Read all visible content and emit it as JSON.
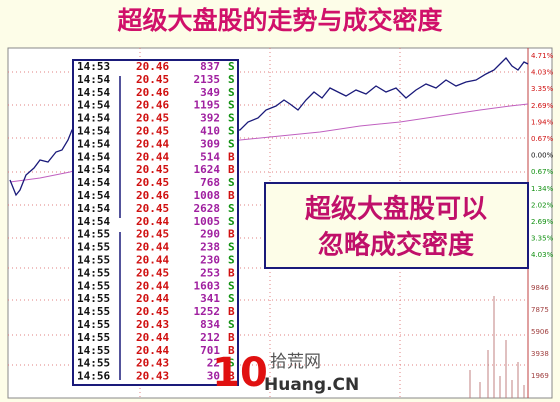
{
  "header": {
    "title": "超级大盘股的走势与成交密度"
  },
  "table": {
    "rows": [
      [
        "14:53",
        "20.46",
        "837",
        "S"
      ],
      [
        "14:54",
        "20.45",
        "2135",
        "S"
      ],
      [
        "14:54",
        "20.46",
        "349",
        "S"
      ],
      [
        "14:54",
        "20.46",
        "1195",
        "S"
      ],
      [
        "14:54",
        "20.45",
        "392",
        "S"
      ],
      [
        "14:54",
        "20.45",
        "410",
        "S"
      ],
      [
        "14:54",
        "20.44",
        "309",
        "S"
      ],
      [
        "14:54",
        "20.44",
        "514",
        "B"
      ],
      [
        "14:54",
        "20.45",
        "1624",
        "B"
      ],
      [
        "14:54",
        "20.45",
        "768",
        "S"
      ],
      [
        "14:54",
        "20.46",
        "1008",
        "B"
      ],
      [
        "14:54",
        "20.45",
        "2628",
        "S"
      ],
      [
        "14:54",
        "20.44",
        "1005",
        "S"
      ],
      [
        "14:55",
        "20.45",
        "290",
        "B"
      ],
      [
        "14:55",
        "20.44",
        "238",
        "S"
      ],
      [
        "14:55",
        "20.44",
        "230",
        "S"
      ],
      [
        "14:55",
        "20.45",
        "253",
        "B"
      ],
      [
        "14:55",
        "20.44",
        "1603",
        "S"
      ],
      [
        "14:55",
        "20.44",
        "341",
        "S"
      ],
      [
        "14:55",
        "20.45",
        "1252",
        "B"
      ],
      [
        "14:55",
        "20.43",
        "834",
        "S"
      ],
      [
        "14:55",
        "20.44",
        "212",
        "B"
      ],
      [
        "14:55",
        "20.44",
        "701",
        "B"
      ],
      [
        "14:55",
        "20.43",
        "22",
        "S"
      ],
      [
        "14:56",
        "20.43",
        "30",
        "B"
      ]
    ]
  },
  "callout": {
    "lines": [
      "超级大盘股可以",
      "忽略成交密度"
    ]
  },
  "axis": {
    "price_labels": [
      "4.71%",
      "4.03%",
      "3.35%",
      "2.69%",
      "1.94%",
      "0.67%",
      "0.00%",
      "0.67%",
      "1.34%",
      "2.02%",
      "2.69%",
      "3.35%",
      "4.03%"
    ],
    "volume_labels": [
      "9846",
      "7875",
      "5906",
      "3938",
      "1969"
    ]
  },
  "watermark": {
    "logo": "10",
    "name": "拾荒网",
    "site": "Huang.CN"
  }
}
